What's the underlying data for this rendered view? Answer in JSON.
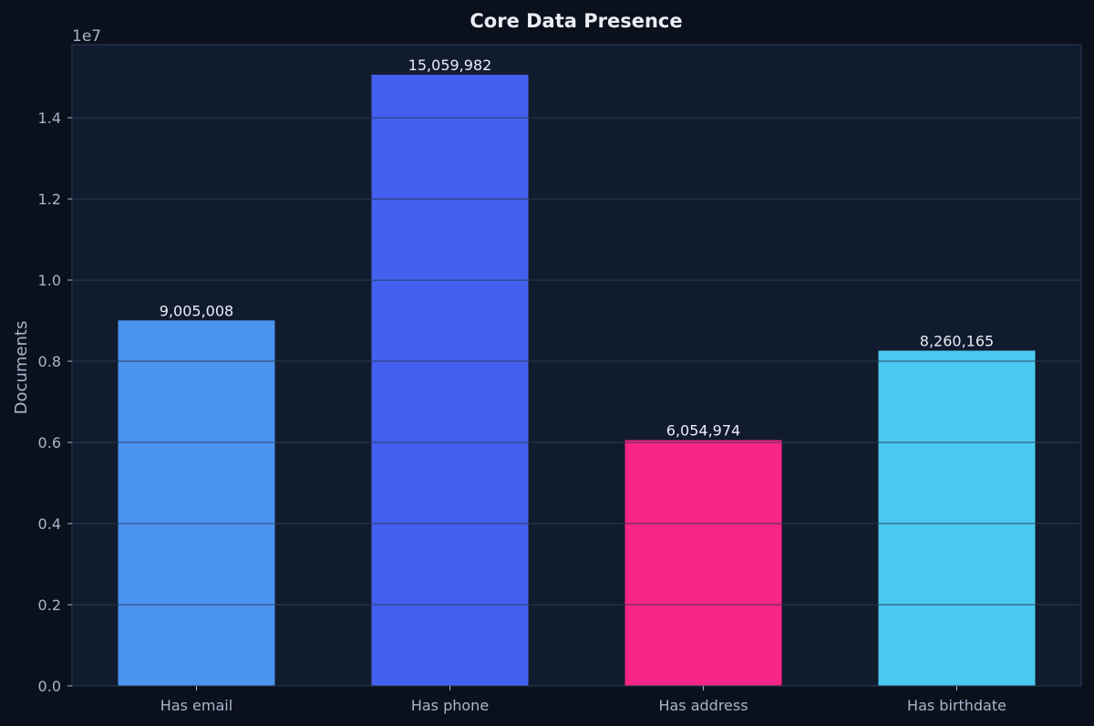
{
  "colors": {
    "page_bg": "#0b111c",
    "plot_bg": "#111b2e",
    "grid": "#1f2b40",
    "spine": "#2a3a55",
    "title": "#e8edf7",
    "text": "#a9b4cc",
    "value_label": "#e8edf7"
  },
  "chart_data": {
    "type": "bar",
    "title": "Core Data Presence",
    "xlabel": "",
    "ylabel": "Documents",
    "y_offset_label": "1e7",
    "ylim": [
      0,
      15800000
    ],
    "yticks": [
      0,
      2000000,
      4000000,
      6000000,
      8000000,
      10000000,
      12000000,
      14000000
    ],
    "ytick_labels": [
      "0.0",
      "0.2",
      "0.4",
      "0.6",
      "0.8",
      "1.0",
      "1.2",
      "1.4"
    ],
    "grid": true,
    "categories": [
      "Has email",
      "Has phone",
      "Has address",
      "Has birthdate"
    ],
    "values": [
      9005008,
      15059982,
      6054974,
      8260165
    ],
    "value_labels": [
      "9,005,008",
      "15,059,982",
      "6,054,974",
      "8,260,165"
    ],
    "bar_colors": [
      "#4a93ef",
      "#4361ee",
      "#f72585",
      "#4cc9f0"
    ]
  }
}
